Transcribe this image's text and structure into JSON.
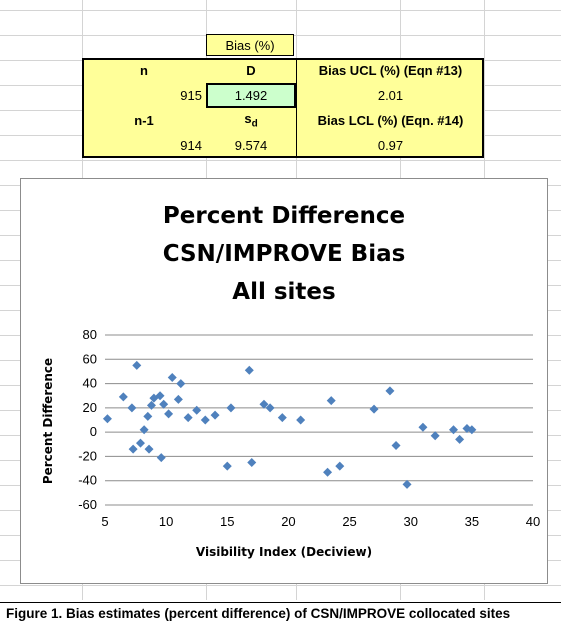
{
  "table": {
    "bias_header": "Bias (%)",
    "n_label": "n",
    "d_label": "D",
    "ucl_label": "Bias UCL (%) (Eqn #13)",
    "n_value": "915",
    "d_value": "1.492",
    "ucl_value": "2.01",
    "n1_label": "n-1",
    "sd_label": "s",
    "sd_sub": "d",
    "lcl_label": "Bias LCL (%) (Eqn. #14)",
    "n1_value": "914",
    "sd_value": "9.574",
    "lcl_value": "0.97"
  },
  "colors": {
    "table_fill": "#ffff99",
    "selected_cell": "#ccffcc",
    "marker": "#4f81bd"
  },
  "chart_data": {
    "type": "scatter",
    "title": [
      "Percent Difference",
      "CSN/IMPROVE Bias",
      "All sites"
    ],
    "xlabel": "Visibility Index (Deciview)",
    "ylabel": "Percent Difference",
    "xlim": [
      5,
      40
    ],
    "ylim": [
      -60,
      80
    ],
    "xticks": [
      5,
      10,
      15,
      20,
      25,
      30,
      35,
      40
    ],
    "yticks": [
      -60,
      -40,
      -20,
      0,
      20,
      40,
      60,
      80
    ],
    "grid": "horizontal",
    "legend": "none",
    "marker": "diamond",
    "series": [
      {
        "points": [
          [
            5.2,
            11
          ],
          [
            6.5,
            29
          ],
          [
            7.2,
            20
          ],
          [
            7.6,
            55
          ],
          [
            7.3,
            -14
          ],
          [
            7.9,
            -9
          ],
          [
            8.2,
            2
          ],
          [
            8.5,
            13
          ],
          [
            8.8,
            22
          ],
          [
            9.0,
            28
          ],
          [
            9.5,
            30
          ],
          [
            9.8,
            23
          ],
          [
            10.2,
            15
          ],
          [
            10.5,
            45
          ],
          [
            11.2,
            40
          ],
          [
            11.0,
            27
          ],
          [
            9.6,
            -21
          ],
          [
            8.6,
            -14
          ],
          [
            11.8,
            12
          ],
          [
            12.5,
            18
          ],
          [
            13.2,
            10
          ],
          [
            14.0,
            14
          ],
          [
            15.0,
            -28
          ],
          [
            15.3,
            20
          ],
          [
            16.8,
            51
          ],
          [
            17.0,
            -25
          ],
          [
            18.0,
            23
          ],
          [
            18.5,
            20
          ],
          [
            19.5,
            12
          ],
          [
            21.0,
            10
          ],
          [
            23.2,
            -33
          ],
          [
            23.5,
            26
          ],
          [
            24.2,
            -28
          ],
          [
            27.0,
            19
          ],
          [
            28.3,
            34
          ],
          [
            28.8,
            -11
          ],
          [
            29.7,
            -43
          ],
          [
            31.0,
            4
          ],
          [
            32.0,
            -3
          ],
          [
            33.5,
            2
          ],
          [
            34.0,
            -6
          ],
          [
            34.6,
            3
          ],
          [
            35.0,
            2
          ]
        ]
      }
    ],
    "caption": "Figure 1. Bias estimates (percent difference) of CSN/IMPROVE collocated sites"
  }
}
